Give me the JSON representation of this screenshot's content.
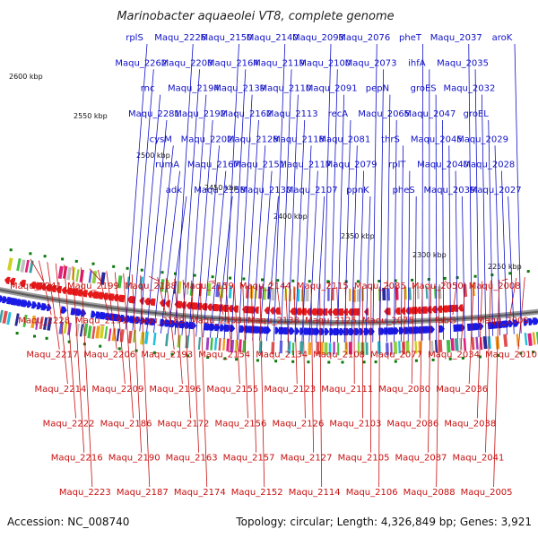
{
  "title": "Marinobacter aquaeolei VT8, complete genome",
  "footer": {
    "accession": "Accession: NC_008740",
    "summary": "Topology: circular; Length: 4,326,849 bp; Genes: 3,921"
  },
  "ticks": [
    "2600 kbp",
    "2550 kbp",
    "2500 kbp",
    "2450 kbp",
    "2400 kbp",
    "2350 kbp",
    "2300 kbp",
    "2250 kbp"
  ],
  "labels_forward": [
    "rplS",
    "Maqu_2262",
    "rnc",
    "Maqu_2281",
    "cysM",
    "rumA",
    "adk",
    "Maqu_2226",
    "Maqu_2203",
    "Maqu_2194",
    "Maqu_2192",
    "Maqu_2202",
    "Maqu_2167",
    "Maqu_2158",
    "Maqu_2150",
    "Maqu_2164",
    "Maqu_2139",
    "Maqu_2162",
    "Maqu_2128",
    "Maqu_2151",
    "Maqu_2130",
    "Maqu_2140",
    "Maqu_2119",
    "Maqu_2110",
    "Maqu_2113",
    "Maqu_2118",
    "Maqu_2117",
    "Maqu_2107",
    "Maqu_2093",
    "Maqu_2100",
    "Maqu_2091",
    "recA",
    "Maqu_2081",
    "Maqu_2079",
    "ppnK",
    "Maqu_2076",
    "Maqu_2073",
    "pepN",
    "Maqu_2065",
    "thrS",
    "rplT",
    "pheS",
    "pheT",
    "ihfA",
    "groES",
    "Maqu_2047",
    "Maqu_2045",
    "Maqu_2040",
    "Maqu_2039",
    "Maqu_2037",
    "Maqu_2035",
    "Maqu_2032",
    "groEL",
    "Maqu_2029",
    "Maqu_2028",
    "Maqu_2027",
    "aroK"
  ],
  "labels_reverse": [
    "Maqu_2241",
    "Maqu_2228",
    "Maqu_2217",
    "Maqu_2214",
    "Maqu_2222",
    "Maqu_2216",
    "Maqu_2223",
    "Maqu_2199",
    "Maqu_2191",
    "Maqu_2206",
    "Maqu_2209",
    "Maqu_2186",
    "Maqu_2190",
    "Maqu_2187",
    "Maqu_2188",
    "Maqu_2189",
    "Maqu_2193",
    "Maqu_2196",
    "Maqu_2172",
    "Maqu_2163",
    "Maqu_2174",
    "Maqu_2159",
    "Maqu_2153",
    "Maqu_2154",
    "Maqu_2155",
    "Maqu_2156",
    "Maqu_2157",
    "Maqu_2152",
    "Maqu_2144",
    "Maqu_2138",
    "Maqu_2134",
    "Maqu_2123",
    "Maqu_2126",
    "Maqu_2127",
    "Maqu_2114",
    "Maqu_2115",
    "Maqu_2125",
    "Maqu_2108",
    "Maqu_2111",
    "Maqu_2103",
    "Maqu_2105",
    "Maqu_2106",
    "Maqu_2085",
    "Maqu_2075",
    "Maqu_2077",
    "Maqu_2080",
    "Maqu_2086",
    "Maqu_2087",
    "Maqu_2088",
    "Maqu_2050",
    "fabG",
    "Maqu_2034",
    "Maqu_2036",
    "Maqu_2038",
    "Maqu_2041",
    "Maqu_2005",
    "Maqu_2008",
    "Maqu_2009",
    "Maqu_2010"
  ],
  "colors": {
    "forward": "#1a1ae6",
    "reverse": "#e61a1a",
    "label_blue": "#1010c8",
    "label_red": "#c81010",
    "backbone": "#7a7a7a",
    "rna": "#0a7a0a"
  }
}
